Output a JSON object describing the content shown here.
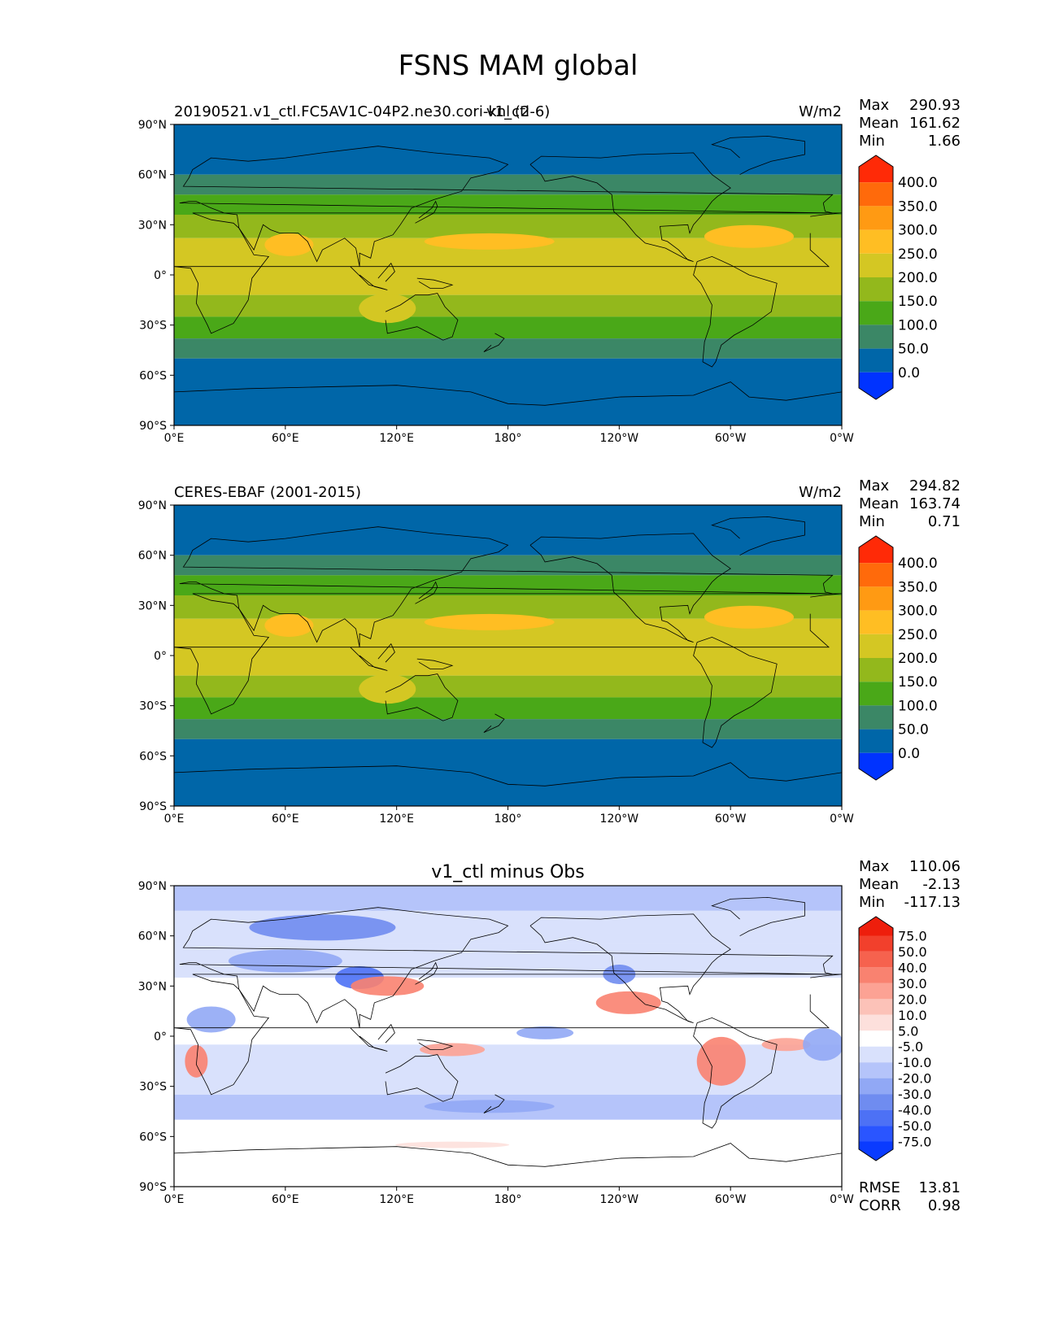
{
  "title": "FSNS MAM global",
  "chart_data": [
    {
      "type": "heatmap",
      "panel": "test",
      "left_title": "20190521.v1_ctl.FC5AV1C-04P2.ne30.cori-knl (2-6)",
      "center_title": "v1_ctl",
      "units": "W/m2",
      "stats": [
        {
          "label": "Max",
          "value": "290.93"
        },
        {
          "label": "Mean",
          "value": "161.62"
        },
        {
          "label": "Min",
          "value": "1.66"
        }
      ],
      "colorbar": {
        "levels": [
          "0.0",
          "50.0",
          "100.0",
          "150.0",
          "200.0",
          "250.0",
          "300.0",
          "350.0",
          "400.0"
        ],
        "colors": [
          "#0033ff",
          "#0066a8",
          "#3b8766",
          "#4aa818",
          "#93b81c",
          "#d4c723",
          "#ffbe23",
          "#ff9a13",
          "#ff6a0b",
          "#ff2a07"
        ],
        "extend": "both"
      }
    },
    {
      "type": "heatmap",
      "panel": "reference",
      "left_title": "CERES-EBAF (2001-2015)",
      "center_title": "",
      "units": "W/m2",
      "stats": [
        {
          "label": "Max",
          "value": "294.82"
        },
        {
          "label": "Mean",
          "value": "163.74"
        },
        {
          "label": "Min",
          "value": "0.71"
        }
      ],
      "colorbar": {
        "levels": [
          "0.0",
          "50.0",
          "100.0",
          "150.0",
          "200.0",
          "250.0",
          "300.0",
          "350.0",
          "400.0"
        ],
        "colors": [
          "#0033ff",
          "#0066a8",
          "#3b8766",
          "#4aa818",
          "#93b81c",
          "#d4c723",
          "#ffbe23",
          "#ff9a13",
          "#ff6a0b",
          "#ff2a07"
        ],
        "extend": "both"
      }
    },
    {
      "type": "heatmap",
      "panel": "difference",
      "left_title": "",
      "center_title": "v1_ctl minus Obs",
      "units": "",
      "stats": [
        {
          "label": "Max",
          "value": "110.06"
        },
        {
          "label": "Mean",
          "value": "-2.13"
        },
        {
          "label": "Min",
          "value": "-117.13"
        }
      ],
      "metrics": [
        {
          "label": "RMSE",
          "value": "13.81"
        },
        {
          "label": "CORR",
          "value": "0.98"
        }
      ],
      "colorbar": {
        "levels": [
          "-75.0",
          "-50.0",
          "-40.0",
          "-30.0",
          "-20.0",
          "-10.0",
          "-5.0",
          "5.0",
          "10.0",
          "20.0",
          "30.0",
          "40.0",
          "50.0",
          "75.0"
        ],
        "colors": [
          "#0a3bff",
          "#2a55ff",
          "#4d71f5",
          "#6f8cf0",
          "#91a8f5",
          "#b5c4fa",
          "#d9e1fc",
          "#ffffff",
          "#fde0dc",
          "#fcc2b8",
          "#fca294",
          "#f98270",
          "#f6624e",
          "#f2402c",
          "#ee1e0c"
        ],
        "extend": "both"
      }
    }
  ],
  "axes": {
    "x_ticks": [
      "0°E",
      "60°E",
      "120°E",
      "180°",
      "120°W",
      "60°W",
      "0°W"
    ],
    "y_ticks": [
      "90°N",
      "60°N",
      "30°N",
      "0°",
      "30°S",
      "60°S",
      "90°S"
    ],
    "xlim": [
      0,
      360
    ],
    "ylim": [
      -90,
      90
    ]
  }
}
